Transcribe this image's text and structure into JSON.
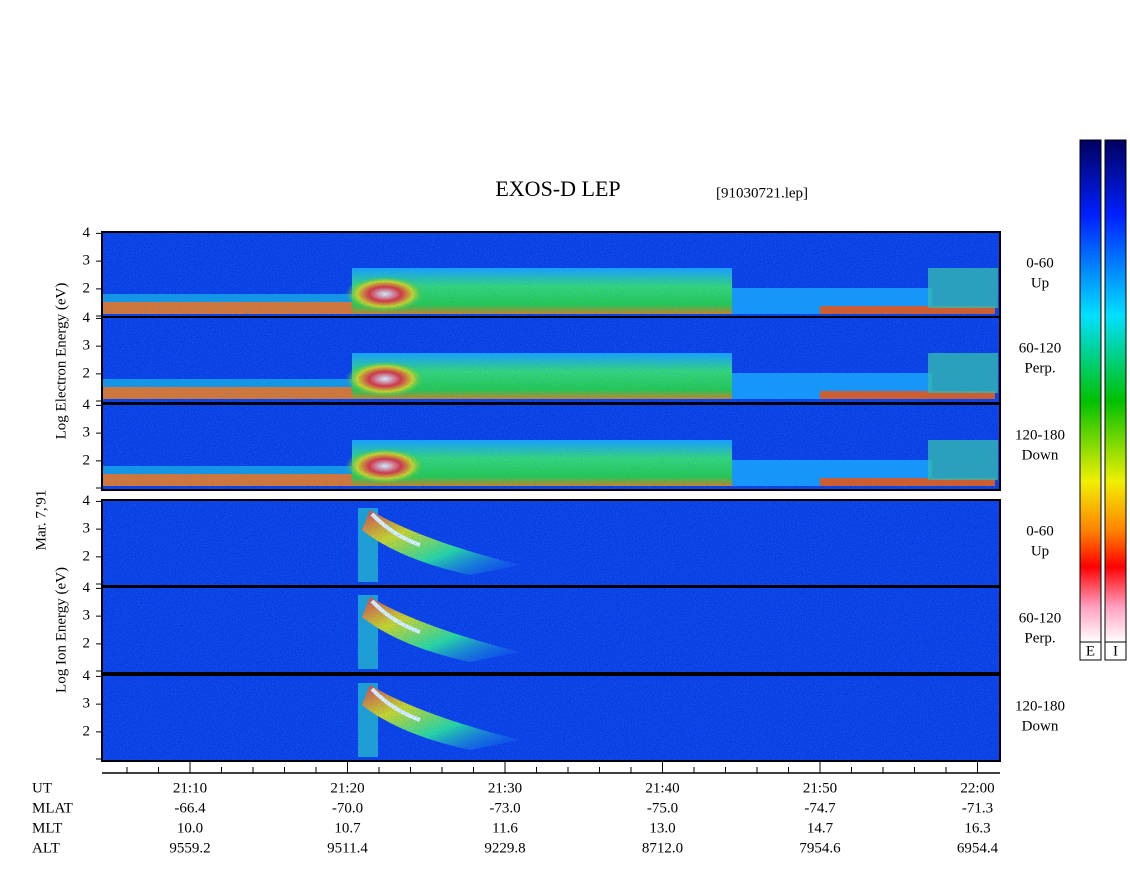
{
  "header": {
    "title": "EXOS-D LEP",
    "file": "[91030721.lep]"
  },
  "date": "Mar. 7,'91",
  "groups": [
    {
      "label": "Log Electron Energy (eV)"
    },
    {
      "label": "Log Ion Energy (eV)"
    }
  ],
  "panels": [
    {
      "labels": [
        "0-60",
        "Up"
      ],
      "yticks": [
        2,
        3,
        4
      ]
    },
    {
      "labels": [
        "60-120",
        "Perp."
      ],
      "yticks": [
        2,
        3,
        4
      ]
    },
    {
      "labels": [
        "120-180",
        "Down"
      ],
      "yticks": [
        2,
        3,
        4
      ]
    },
    {
      "labels": [
        "0-60",
        "Up"
      ],
      "yticks": [
        2,
        3,
        4
      ]
    },
    {
      "labels": [
        "60-120",
        "Perp."
      ],
      "yticks": [
        2,
        3,
        4
      ]
    },
    {
      "labels": [
        "120-180",
        "Down"
      ],
      "yticks": [
        2,
        3,
        4
      ]
    }
  ],
  "xaxis": {
    "rows": [
      {
        "name": "UT",
        "values": [
          "21:10",
          "21:20",
          "21:30",
          "21:40",
          "21:50",
          "22:00"
        ]
      },
      {
        "name": "MLAT",
        "values": [
          "-66.4",
          "-70.0",
          "-73.0",
          "-75.0",
          "-74.7",
          "-71.3"
        ]
      },
      {
        "name": "MLT",
        "values": [
          "10.0",
          "10.7",
          "11.6",
          "13.0",
          "14.7",
          "16.3"
        ]
      },
      {
        "name": "ALT",
        "values": [
          "9559.2",
          "9511.4",
          "9229.8",
          "8712.0",
          "7954.6",
          "6954.4"
        ]
      }
    ]
  },
  "colorbars": [
    "E",
    "I"
  ]
}
